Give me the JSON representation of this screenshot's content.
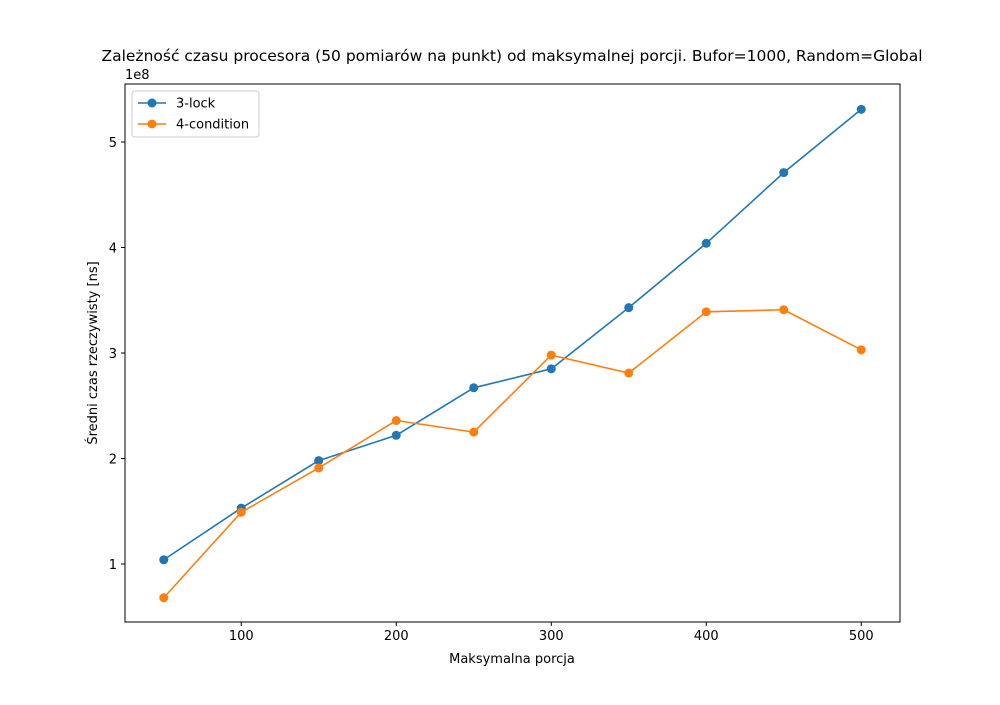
{
  "chart_data": {
    "type": "line",
    "title": "Zależność czasu procesora (50 pomiarów na punkt) od maksymalnej porcji. Bufor=1000, Random=Global",
    "xlabel": "Maksymalna porcja",
    "ylabel": "Średni czas rzeczywisty [ns]",
    "y_offset_label": "1e8",
    "y_scale_factor": 100000000,
    "xlim": [
      25,
      525
    ],
    "ylim": [
      45000000,
      555000000
    ],
    "x_ticks": [
      100,
      200,
      300,
      400,
      500
    ],
    "y_ticks": [
      100000000,
      200000000,
      300000000,
      400000000,
      500000000
    ],
    "x_tick_labels": [
      "100",
      "200",
      "300",
      "400",
      "500"
    ],
    "y_tick_labels": [
      "1",
      "2",
      "3",
      "4",
      "5"
    ],
    "grid": false,
    "legend_position": "top-left",
    "x": [
      50,
      100,
      150,
      200,
      250,
      300,
      350,
      400,
      450,
      500
    ],
    "series": [
      {
        "name": "3-lock",
        "color": "#1f77b4",
        "values": [
          104000000,
          153000000,
          198000000,
          222000000,
          267000000,
          285000000,
          343000000,
          404000000,
          471000000,
          531000000
        ]
      },
      {
        "name": "4-condition",
        "color": "#ff7f0e",
        "values": [
          68000000,
          149000000,
          191000000,
          236000000,
          225000000,
          298000000,
          281000000,
          339000000,
          341000000,
          303000000
        ]
      }
    ]
  }
}
